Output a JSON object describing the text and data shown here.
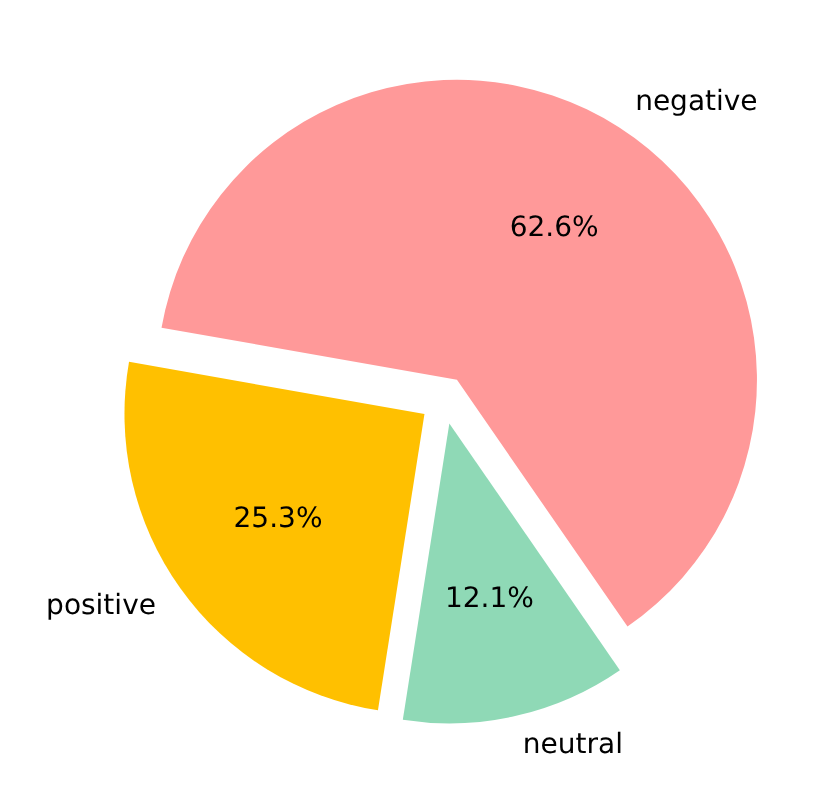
{
  "chart_data": {
    "type": "pie",
    "categories": [
      "negative",
      "neutral",
      "positive"
    ],
    "values": [
      62.6,
      12.1,
      25.3
    ],
    "colors": [
      "#ff9999",
      "#8fd9b6",
      "#ffc000"
    ],
    "value_labels": [
      "62.6%",
      "12.1%",
      "25.3%"
    ]
  }
}
